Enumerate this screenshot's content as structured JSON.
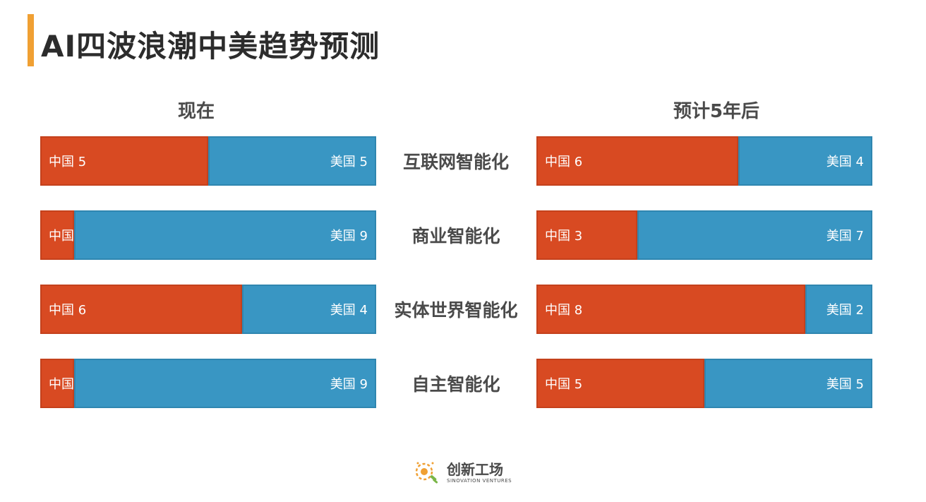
{
  "title": "AI四波浪潮中美趋势预测",
  "colors": {
    "accent": "#f0a033",
    "china": "#d84a22",
    "usa": "#3996c3",
    "text": "#2c2c2c"
  },
  "chart_data": [
    {
      "type": "bar",
      "stacked": true,
      "orientation": "horizontal",
      "title": "现在",
      "categories": [
        "互联网智能化",
        "商业智能化",
        "实体世界智能化",
        "自主智能化"
      ],
      "series": [
        {
          "name": "中国",
          "values": [
            5,
            1,
            6,
            1
          ]
        },
        {
          "name": "美国",
          "values": [
            5,
            9,
            4,
            9
          ]
        }
      ],
      "xlim": [
        0,
        10
      ]
    },
    {
      "type": "bar",
      "stacked": true,
      "orientation": "horizontal",
      "title": "预计5年后",
      "categories": [
        "互联网智能化",
        "商业智能化",
        "实体世界智能化",
        "自主智能化"
      ],
      "series": [
        {
          "name": "中国",
          "values": [
            6,
            3,
            8,
            5
          ]
        },
        {
          "name": "美国",
          "values": [
            4,
            7,
            2,
            5
          ]
        }
      ],
      "xlim": [
        0,
        10
      ]
    }
  ],
  "logo": {
    "name_cn": "创新工场",
    "name_en": "SINOVATION VENTURES"
  }
}
